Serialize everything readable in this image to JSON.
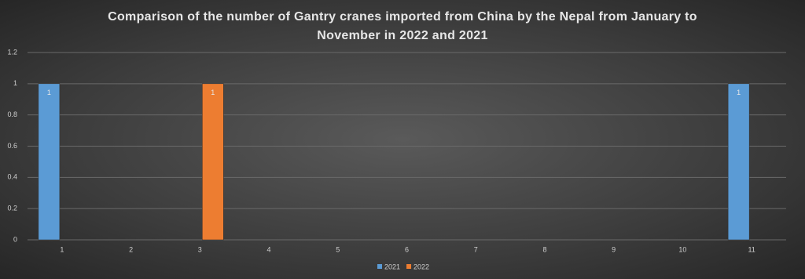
{
  "chart_data": {
    "type": "bar",
    "title": "Comparison of the number of Gantry cranes imported from China by the Nepal from January to November in 2022 and 2021",
    "categories": [
      "1",
      "2",
      "3",
      "4",
      "5",
      "6",
      "7",
      "8",
      "9",
      "10",
      "11"
    ],
    "series": [
      {
        "name": "2021",
        "color": "#5b9bd5",
        "values": [
          1,
          0,
          0,
          0,
          0,
          0,
          0,
          0,
          0,
          0,
          1
        ]
      },
      {
        "name": "2022",
        "color": "#ed7d31",
        "values": [
          0,
          0,
          1,
          0,
          0,
          0,
          0,
          0,
          0,
          0,
          0
        ]
      }
    ],
    "ylim": [
      0,
      1.2
    ],
    "yticks": [
      0,
      0.2,
      0.4,
      0.6,
      0.8,
      1,
      1.2
    ],
    "grid": true,
    "legend": "bottom"
  }
}
